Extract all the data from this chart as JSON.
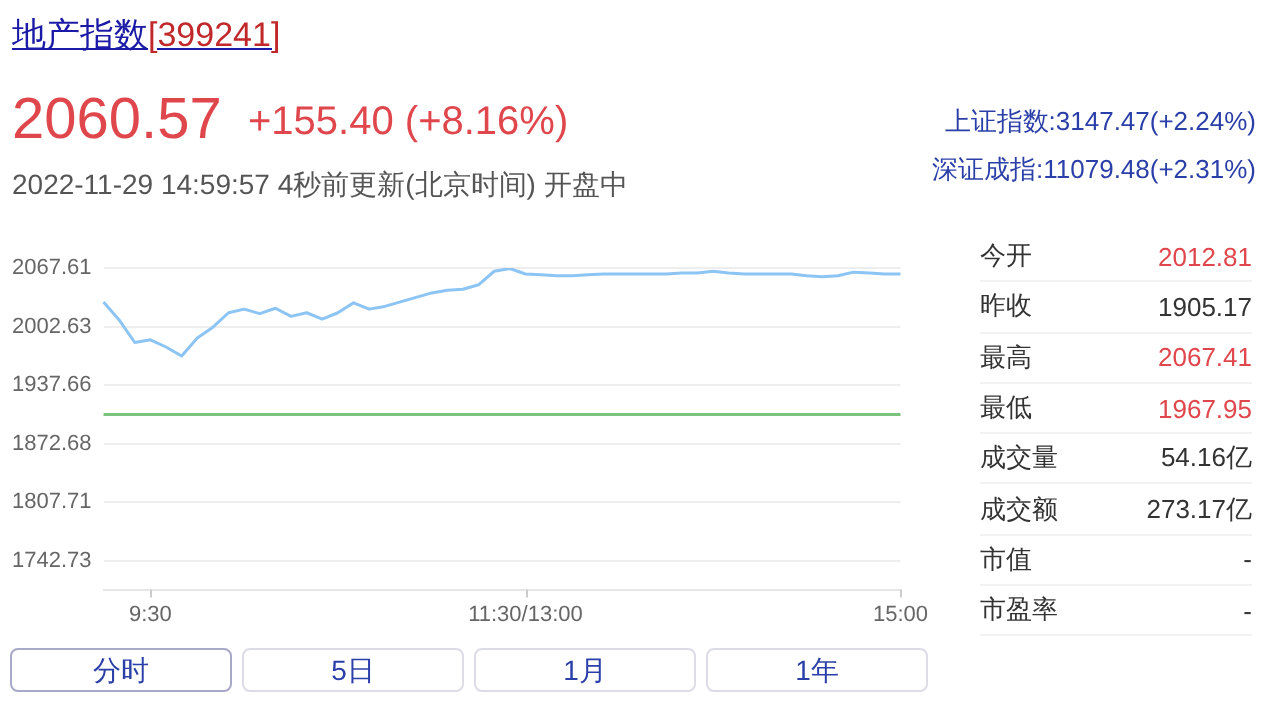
{
  "chart_data": {
    "type": "line",
    "title": "地产指数",
    "subtitle": "[399241]",
    "annotations": [
      "2060.57",
      "+155.40 (+8.16%)",
      "2022-11-29 14:59:57 4秒前更新(北京时间) 开盘中",
      "上证指数:3147.47(+2.24%)",
      "深证成指:11079.48(+2.31%)",
      "今开",
      "2012.81",
      "昨收",
      "1905.17",
      "最高",
      "2067.41",
      "最低",
      "1967.95",
      "成交量",
      "54.16亿",
      "成交额",
      "273.17亿",
      "市值",
      "-",
      "市盈率",
      "-",
      "分时",
      "5日",
      "1月",
      "1年"
    ],
    "categories": [
      null,
      null,
      null,
      "9:30",
      null,
      null,
      null,
      null,
      null,
      null,
      null,
      null,
      null,
      null,
      null,
      null,
      null,
      null,
      null,
      null,
      null,
      null,
      null,
      null,
      null,
      null,
      null,
      "11:30/13:00",
      null,
      null,
      null,
      null,
      null,
      null,
      null,
      null,
      null,
      null,
      null,
      null,
      null,
      null,
      null,
      null,
      null,
      null,
      null,
      null,
      null,
      null,
      null,
      "15:00"
    ],
    "series": [
      {
        "color": "#8cc4f4",
        "values": [
          2030,
          2010,
          1985,
          1988,
          1980,
          1970,
          1990,
          2002,
          2018,
          2022,
          2017,
          2023,
          2014,
          2018,
          2011,
          2018,
          2029,
          2022,
          2025,
          2030,
          2035,
          2040,
          2043,
          2044,
          2049,
          2064,
          2067,
          2061,
          2060,
          2059,
          2059,
          2060,
          2061,
          2061,
          2061,
          2061,
          2061,
          2062,
          2062,
          2064,
          2062,
          2061,
          2061,
          2061,
          2061,
          2059,
          2058,
          2059,
          2063,
          2062,
          2061,
          2061
        ]
      }
    ],
    "ylim": [
      1711,
      2067.61
    ],
    "yticks": [
      1742.73,
      1807.71,
      1872.68,
      1937.66,
      2002.63,
      2067.61
    ],
    "ref_lines": [
      {
        "axis": "y",
        "value": 1905.17,
        "color": "#7cc47c"
      }
    ],
    "grid": "y",
    "legend": false,
    "marker": "none",
    "line_style": "solid"
  }
}
